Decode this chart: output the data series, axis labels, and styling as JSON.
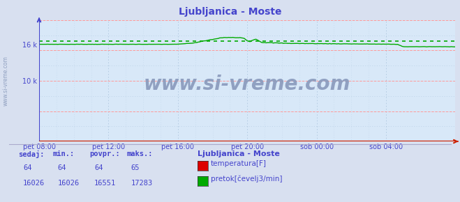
{
  "title": "Ljubljanica - Moste",
  "title_color": "#4444cc",
  "bg_color": "#d8e0f0",
  "plot_bg_color": "#d8e8f8",
  "grid_color_major_h": "#ff9999",
  "grid_color_minor": "#b0c8e0",
  "yaxis_color": "#4444cc",
  "xaxis_color": "#cc2200",
  "x_labels": [
    "pet 08:00",
    "pet 12:00",
    "pet 16:00",
    "pet 20:00",
    "sob 00:00",
    "sob 04:00"
  ],
  "x_ticks_norm": [
    0.0,
    0.1667,
    0.3333,
    0.5,
    0.6667,
    0.8333
  ],
  "ylim": [
    0,
    20000
  ],
  "ytick_10k": 10000,
  "ytick_16k": 16000,
  "watermark": "www.si-vreme.com",
  "watermark_color": "#8899bb",
  "watermark_fontsize": 20,
  "watermark_side": "www.si-vreme.com",
  "legend_title": "Ljubljanica - Moste",
  "legend_title_color": "#4444cc",
  "stats_labels": [
    "sedaj:",
    "min.:",
    "povpr.:",
    "maks.:"
  ],
  "stats_temp": [
    "64",
    "64",
    "64",
    "65"
  ],
  "stats_flow": [
    "16026",
    "16026",
    "16551",
    "17283"
  ],
  "temp_color": "#dd0000",
  "flow_color": "#00aa00",
  "temp_label": "temperatura[F]",
  "flow_label": "pretok[čevelj3/min]",
  "xlabel_color": "#4444cc",
  "stats_label_color": "#4444cc",
  "avg_flow": 16551,
  "min_flow": 16026,
  "max_flow": 17283
}
